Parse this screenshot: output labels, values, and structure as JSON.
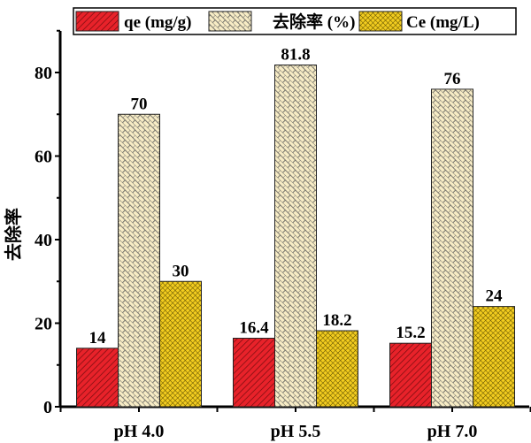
{
  "chart_data": {
    "type": "bar",
    "categories": [
      "pH 4.0",
      "pH 5.5",
      "pH 7.0"
    ],
    "series": [
      {
        "name": "qe (mg/g)",
        "values": [
          14,
          16.4,
          15.2
        ],
        "color": "#e8222a",
        "pattern": "diagonal"
      },
      {
        "name": "去除率 (%)",
        "values": [
          70,
          81.8,
          76
        ],
        "color": "#f7ecc5",
        "pattern": "brick"
      },
      {
        "name": "Ce (mg/L)",
        "values": [
          30,
          18.2,
          24
        ],
        "color": "#f2cc1f",
        "pattern": "crosshatch"
      }
    ],
    "data_labels": [
      [
        "14",
        "16.4",
        "15.2"
      ],
      [
        "70",
        "81.8",
        "76"
      ],
      [
        "30",
        "18.2",
        "24"
      ]
    ],
    "ylabel": "去除率",
    "xlabel": "",
    "ylim": [
      0,
      90
    ],
    "yticks": [
      "0",
      "20",
      "40",
      "60",
      "80"
    ],
    "grid": false,
    "legend": "top"
  }
}
